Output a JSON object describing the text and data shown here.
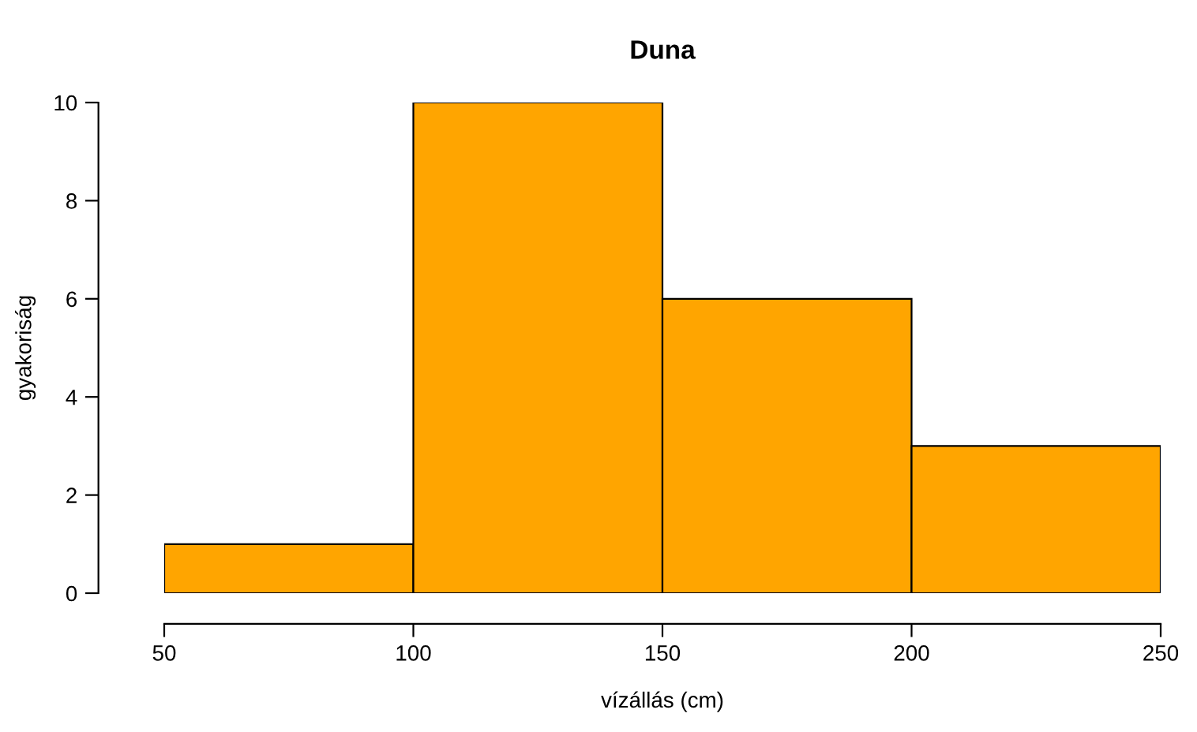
{
  "chart_data": {
    "type": "histogram",
    "title": "Duna",
    "xlabel": "vízállás (cm)",
    "ylabel": "gyakoriság",
    "bins": [
      50,
      100,
      150,
      200,
      250
    ],
    "values": [
      1,
      10,
      6,
      3
    ],
    "color": "#ffa500",
    "xlim": [
      50,
      250
    ],
    "ylim": [
      0,
      10
    ],
    "xticks": [
      50,
      100,
      150,
      200,
      250
    ],
    "yticks": [
      0,
      2,
      4,
      6,
      8,
      10
    ],
    "grid": false,
    "legend": false
  }
}
